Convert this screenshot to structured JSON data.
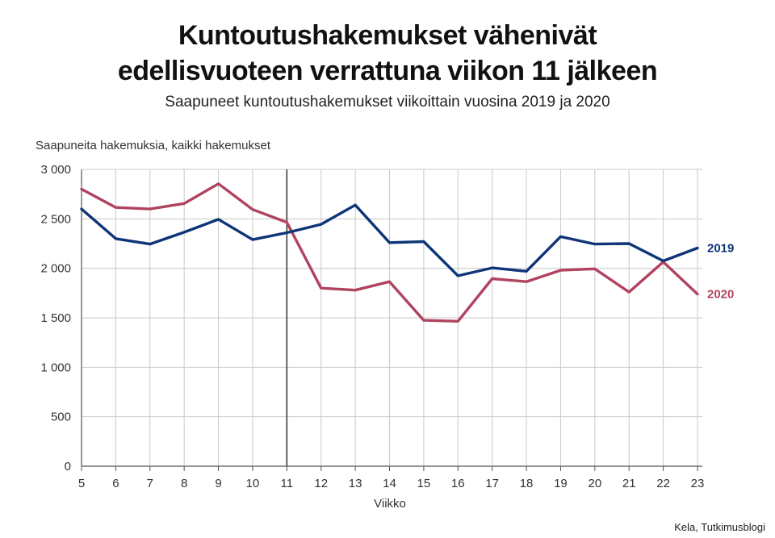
{
  "title_line1": "Kuntoutushakemukset vähenivät",
  "title_line2": "edellisvuoteen verrattuna viikon 11 jälkeen",
  "subtitle": "Saapuneet kuntoutushakemukset viikoittain vuosina 2019 ja 2020",
  "source": "Kela, Tutkimusblogi",
  "chart_data": {
    "type": "line",
    "title": "Kuntoutushakemukset vähenivät edellisvuoteen verrattuna viikon 11 jälkeen",
    "subtitle": "Saapuneet kuntoutushakemukset viikoittain vuosina 2019 ja 2020",
    "xlabel": "Viikko",
    "ylabel": "Saapuneita hakemuksia, kaikki hakemukset",
    "x": [
      5,
      6,
      7,
      8,
      9,
      10,
      11,
      12,
      13,
      14,
      15,
      16,
      17,
      18,
      19,
      20,
      21,
      22,
      23
    ],
    "ylim": [
      0,
      3000
    ],
    "yticks": [
      0,
      500,
      1000,
      1500,
      2000,
      2500,
      3000
    ],
    "ytick_labels": [
      "0",
      "500",
      "1 000",
      "1 500",
      "2 000",
      "2 500",
      "3 000"
    ],
    "grid": true,
    "vertical_marker_x": 11,
    "series": [
      {
        "name": "2019",
        "color": "#0d3577",
        "values": [
          2600,
          2300,
          2245,
          2365,
          2495,
          2290,
          2360,
          2445,
          2640,
          2260,
          2270,
          1925,
          2005,
          1970,
          2320,
          2245,
          2250,
          2075,
          2205
        ]
      },
      {
        "name": "2020",
        "color": "#b0435f",
        "values": [
          2800,
          2615,
          2600,
          2655,
          2855,
          2595,
          2465,
          1800,
          1780,
          1865,
          1475,
          1465,
          1895,
          1865,
          1980,
          1995,
          1760,
          2065,
          1740
        ]
      }
    ]
  }
}
